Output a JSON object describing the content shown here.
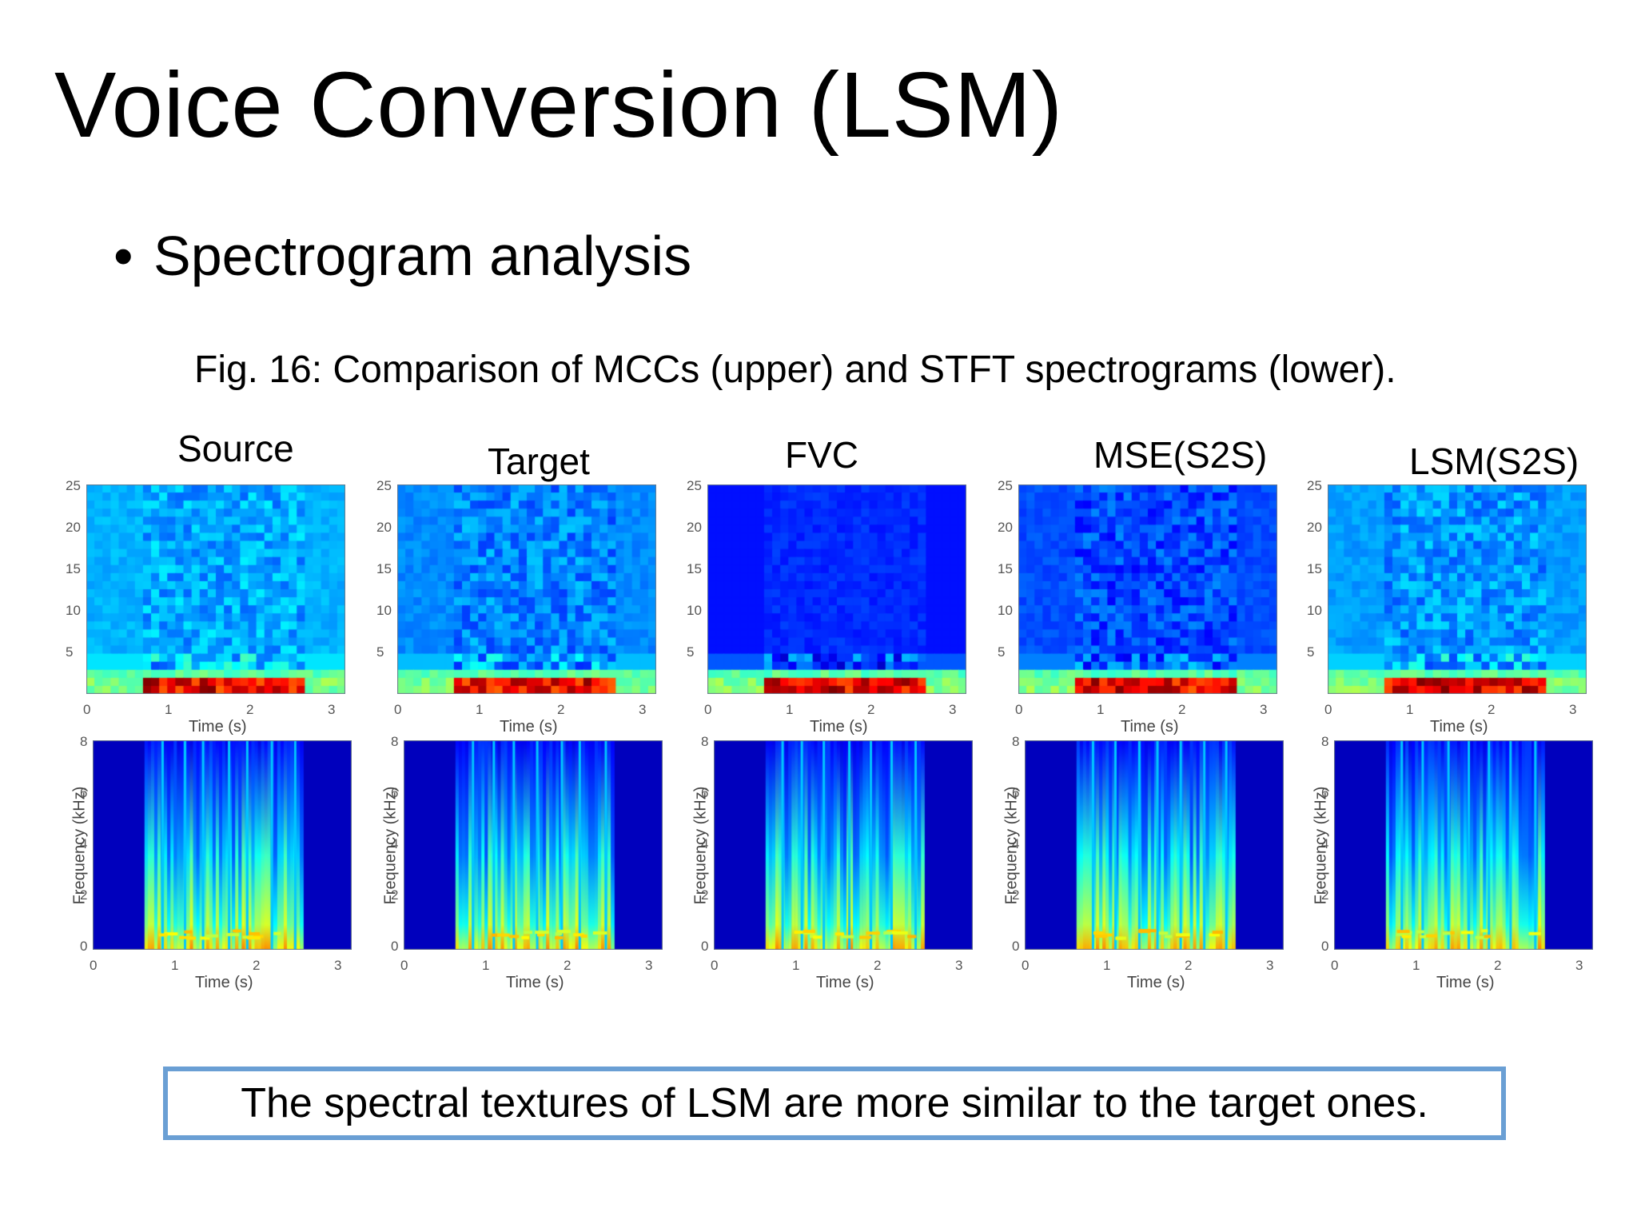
{
  "slide": {
    "title": "Voice Conversion (LSM)",
    "bullet": "Spectrogram analysis",
    "bullet_glyph": "•",
    "caption": "Fig. 16: Comparison of MCCs (upper) and STFT spectrograms (lower).",
    "conclusion": "The spectral textures of LSM are more similar to the target ones.",
    "box_border_color": "#6a9fd4"
  },
  "figure": {
    "columns": [
      {
        "title": "Source"
      },
      {
        "title": "Target"
      },
      {
        "title": "FVC"
      },
      {
        "title": "MSE(S2S)"
      },
      {
        "title": "LSM(S2S)"
      }
    ],
    "upper": {
      "yticks": [
        "25",
        "20",
        "15",
        "10",
        "5"
      ],
      "xticks": [
        "0",
        "1",
        "2",
        "3"
      ],
      "xlabel": "Time (s)"
    },
    "lower": {
      "yticks": [
        "8",
        "6",
        "4",
        "2",
        "0"
      ],
      "xticks": [
        "0",
        "1",
        "2",
        "3"
      ],
      "xlabel": "Time (s)",
      "ylabel": "Frequency (kHz)"
    },
    "colormap": "jet"
  }
}
